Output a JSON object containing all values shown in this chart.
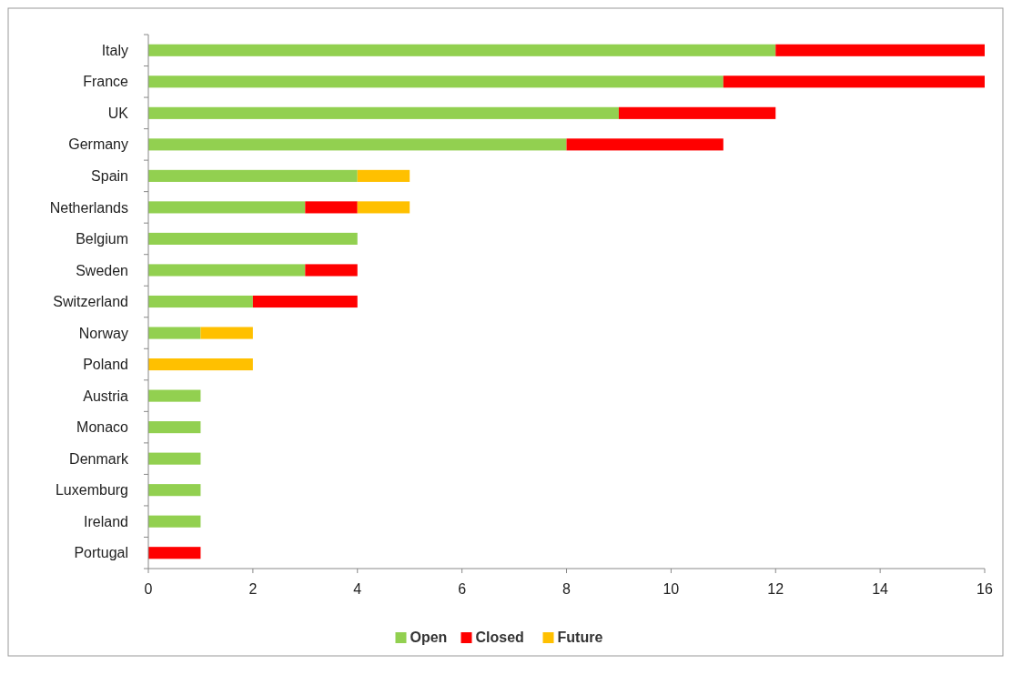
{
  "chart_data": {
    "type": "bar",
    "orientation": "horizontal",
    "stacked": true,
    "categories": [
      "Italy",
      "France",
      "UK",
      "Germany",
      "Spain",
      "Netherlands",
      "Belgium",
      "Sweden",
      "Switzerland",
      "Norway",
      "Poland",
      "Austria",
      "Monaco",
      "Denmark",
      "Luxemburg",
      "Ireland",
      "Portugal"
    ],
    "series": [
      {
        "name": "Open",
        "color": "#92d050",
        "values": [
          12,
          11,
          9,
          8,
          4,
          3,
          4,
          3,
          2,
          1,
          0,
          1,
          1,
          1,
          1,
          1,
          0
        ]
      },
      {
        "name": "Closed",
        "color": "#ff0000",
        "values": [
          4,
          5,
          3,
          3,
          0,
          1,
          0,
          1,
          2,
          0,
          0,
          0,
          0,
          0,
          0,
          0,
          1
        ]
      },
      {
        "name": "Future",
        "color": "#ffc000",
        "values": [
          0,
          0,
          0,
          0,
          1,
          1,
          0,
          0,
          0,
          1,
          2,
          0,
          0,
          0,
          0,
          0,
          0
        ]
      }
    ],
    "xlim": [
      0,
      16
    ],
    "xticks": [
      0,
      2,
      4,
      6,
      8,
      10,
      12,
      14,
      16
    ],
    "grid": false,
    "legend": "bottom"
  }
}
